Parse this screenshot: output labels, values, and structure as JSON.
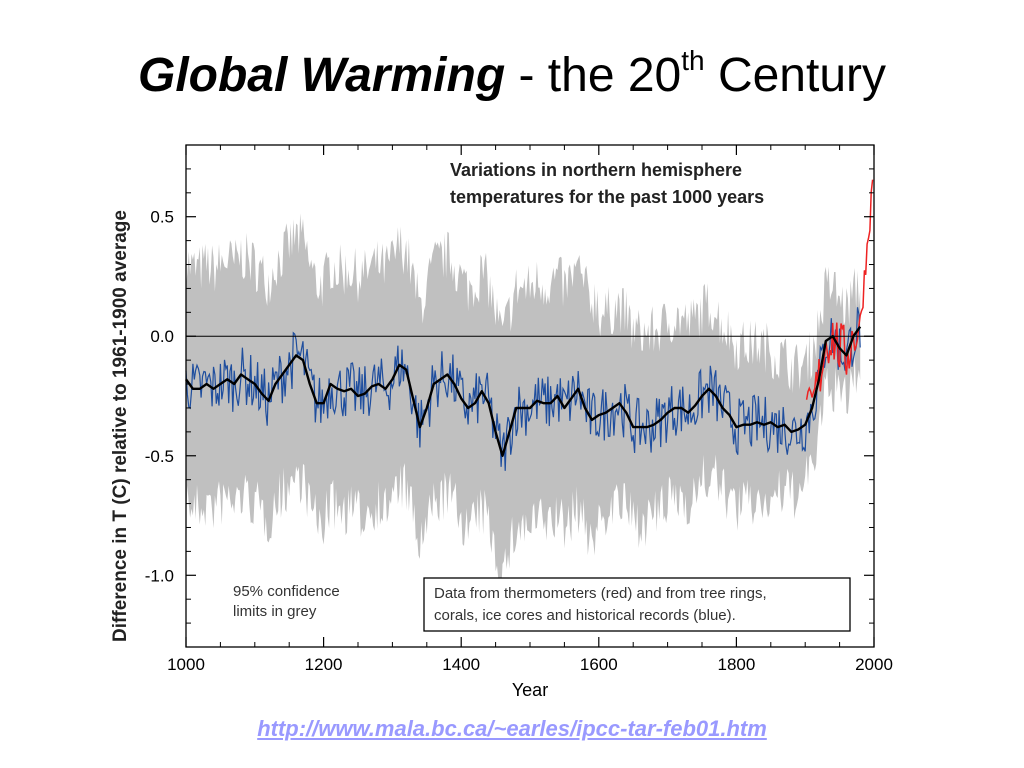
{
  "slide": {
    "title_emph": "Global Warming",
    "title_rest": " - the 20",
    "title_sup": "th",
    "title_end": " Century",
    "link": "http://www.mala.bc.ca/~earles/ipcc-tar-feb01.htm"
  },
  "colors": {
    "confidence": "#c0c0c0",
    "proxy": "#1f4e9e",
    "thermometer": "#ee2222",
    "smooth": "#000000",
    "link": "#9999ff"
  },
  "chart_data": {
    "type": "line",
    "title": "Variations in northern hemisphere",
    "subtitle": "temperatures for the past 1000 years",
    "xlabel": "Year",
    "ylabel": "Difference in T (C) relative to 1961-1900 average",
    "xlim": [
      1000,
      2000
    ],
    "ylim": [
      -1.3,
      0.8
    ],
    "x_ticks": [
      1000,
      1200,
      1400,
      1600,
      1800,
      2000
    ],
    "y_ticks": [
      0.5,
      0.0,
      -0.5,
      -1.0
    ],
    "y_tick_labels": [
      "0.5",
      "0.0",
      "-0.5",
      "-1.0"
    ],
    "zero_line": 0,
    "annotations": {
      "confidence_note": [
        "95% confidence",
        "limits in grey"
      ],
      "data_note": [
        "Data from thermometers (red) and from tree rings,",
        "corals, ice cores and historical records (blue)."
      ]
    },
    "series": [
      {
        "key": "smooth",
        "x": [
          1000,
          1010,
          1020,
          1030,
          1040,
          1050,
          1060,
          1070,
          1080,
          1090,
          1100,
          1110,
          1120,
          1130,
          1140,
          1150,
          1160,
          1170,
          1180,
          1190,
          1200,
          1210,
          1220,
          1230,
          1240,
          1250,
          1260,
          1270,
          1280,
          1290,
          1300,
          1310,
          1320,
          1330,
          1340,
          1350,
          1360,
          1370,
          1380,
          1390,
          1400,
          1410,
          1420,
          1430,
          1440,
          1450,
          1460,
          1470,
          1480,
          1490,
          1500,
          1510,
          1520,
          1530,
          1540,
          1550,
          1560,
          1570,
          1580,
          1590,
          1600,
          1610,
          1620,
          1630,
          1640,
          1650,
          1660,
          1670,
          1680,
          1690,
          1700,
          1710,
          1720,
          1730,
          1740,
          1750,
          1760,
          1770,
          1780,
          1790,
          1800,
          1810,
          1820,
          1830,
          1840,
          1850,
          1860,
          1870,
          1880,
          1890,
          1900,
          1910,
          1920,
          1930,
          1940,
          1950,
          1960,
          1970,
          1980
        ],
        "values": [
          -0.18,
          -0.22,
          -0.22,
          -0.2,
          -0.22,
          -0.2,
          -0.18,
          -0.2,
          -0.16,
          -0.18,
          -0.2,
          -0.24,
          -0.27,
          -0.2,
          -0.16,
          -0.12,
          -0.08,
          -0.1,
          -0.2,
          -0.28,
          -0.28,
          -0.2,
          -0.22,
          -0.23,
          -0.22,
          -0.25,
          -0.24,
          -0.21,
          -0.2,
          -0.22,
          -0.18,
          -0.12,
          -0.14,
          -0.26,
          -0.38,
          -0.3,
          -0.2,
          -0.18,
          -0.16,
          -0.2,
          -0.26,
          -0.3,
          -0.28,
          -0.23,
          -0.28,
          -0.4,
          -0.5,
          -0.4,
          -0.3,
          -0.3,
          -0.3,
          -0.27,
          -0.28,
          -0.28,
          -0.25,
          -0.3,
          -0.26,
          -0.22,
          -0.3,
          -0.35,
          -0.33,
          -0.32,
          -0.3,
          -0.28,
          -0.32,
          -0.38,
          -0.38,
          -0.38,
          -0.37,
          -0.35,
          -0.32,
          -0.3,
          -0.3,
          -0.32,
          -0.29,
          -0.25,
          -0.22,
          -0.25,
          -0.3,
          -0.33,
          -0.38,
          -0.37,
          -0.37,
          -0.36,
          -0.37,
          -0.36,
          -0.38,
          -0.37,
          -0.4,
          -0.39,
          -0.37,
          -0.3,
          -0.18,
          -0.02,
          0.0,
          -0.05,
          -0.08,
          0.0,
          0.04
        ]
      }
    ]
  }
}
